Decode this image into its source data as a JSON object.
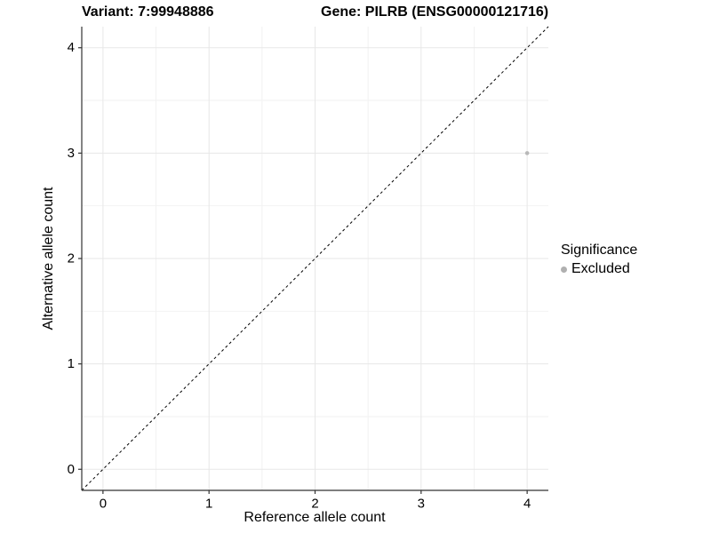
{
  "chart_data": {
    "type": "scatter",
    "titles": {
      "variant": "Variant: 7:99948886",
      "gene": "Gene: PILRB (ENSG00000121716)"
    },
    "xlabel": "Reference allele count",
    "ylabel": "Alternative allele count",
    "xlim": [
      -0.2,
      4.2
    ],
    "ylim": [
      -0.2,
      4.2
    ],
    "xticks": [
      0,
      1,
      2,
      3,
      4
    ],
    "yticks": [
      0,
      1,
      2,
      3,
      4
    ],
    "grid": {
      "major": true,
      "minor": true
    },
    "identity_line": {
      "equation": "y = x",
      "style": "dashed",
      "color": "#000000"
    },
    "series": [
      {
        "name": "Excluded",
        "color": "#b8b8b8",
        "points": [
          {
            "x": 4,
            "y": 3
          }
        ]
      }
    ],
    "legend": {
      "title": "Significance",
      "position": "right",
      "items": [
        {
          "label": "Excluded",
          "color": "#b0b0b0"
        }
      ]
    },
    "colors": {
      "background": "#ffffff",
      "grid_major": "#e7e7e7",
      "grid_minor": "#f2f2f2",
      "axis": "#333333",
      "text": "#000000"
    }
  }
}
